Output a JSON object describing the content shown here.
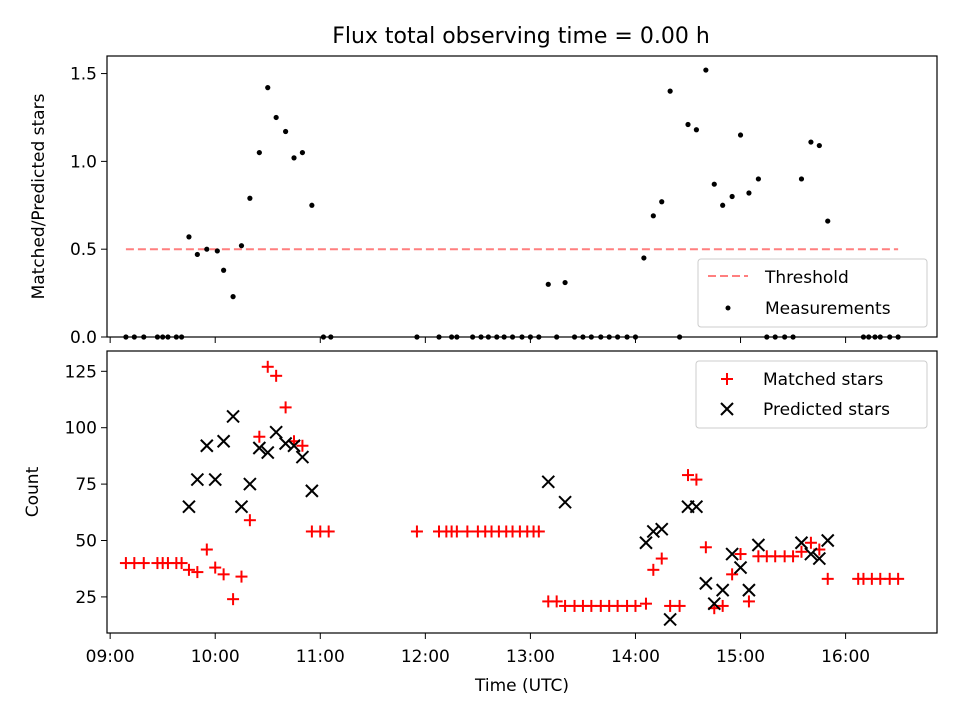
{
  "figure": {
    "title": "Flux total observing time = 0.00 h"
  },
  "chart_data": [
    {
      "type": "scatter",
      "panel": "top",
      "title": "Flux total observing time = 0.00 h",
      "xlabel": "",
      "ylabel": "Matched/Predicted stars",
      "x_units": "hours UTC",
      "xlim": [
        8.97,
        16.87
      ],
      "ylim": [
        0.0,
        1.6
      ],
      "yticks": [
        0.0,
        0.5,
        1.0,
        1.5
      ],
      "ytick_labels": [
        "0.0",
        "0.5",
        "1.0",
        "1.5"
      ],
      "legend_position": "lower-right",
      "threshold": {
        "name": "Threshold",
        "value": 0.5,
        "x_range": [
          9.15,
          16.5
        ],
        "color": "#ff7f7f",
        "style": "dashed"
      },
      "series": [
        {
          "name": "Measurements",
          "marker": "dot",
          "color": "#000000",
          "points": [
            [
              9.15,
              0.0
            ],
            [
              9.23,
              0.0
            ],
            [
              9.32,
              0.0
            ],
            [
              9.45,
              0.0
            ],
            [
              9.5,
              0.0
            ],
            [
              9.55,
              0.0
            ],
            [
              9.63,
              0.0
            ],
            [
              9.68,
              0.0
            ],
            [
              9.75,
              0.57
            ],
            [
              9.83,
              0.47
            ],
            [
              9.92,
              0.5
            ],
            [
              10.02,
              0.49
            ],
            [
              10.08,
              0.38
            ],
            [
              10.17,
              0.23
            ],
            [
              10.25,
              0.52
            ],
            [
              10.33,
              0.79
            ],
            [
              10.42,
              1.05
            ],
            [
              10.5,
              1.42
            ],
            [
              10.58,
              1.25
            ],
            [
              10.67,
              1.17
            ],
            [
              10.75,
              1.02
            ],
            [
              10.83,
              1.05
            ],
            [
              10.92,
              0.75
            ],
            [
              11.03,
              0.0
            ],
            [
              11.1,
              0.0
            ],
            [
              11.92,
              0.0
            ],
            [
              12.13,
              0.0
            ],
            [
              12.25,
              0.0
            ],
            [
              12.3,
              0.0
            ],
            [
              12.45,
              0.0
            ],
            [
              12.53,
              0.0
            ],
            [
              12.6,
              0.0
            ],
            [
              12.68,
              0.0
            ],
            [
              12.75,
              0.0
            ],
            [
              12.83,
              0.0
            ],
            [
              12.92,
              0.0
            ],
            [
              13.0,
              0.0
            ],
            [
              13.08,
              0.0
            ],
            [
              13.17,
              0.3
            ],
            [
              13.25,
              0.0
            ],
            [
              13.33,
              0.31
            ],
            [
              13.42,
              0.0
            ],
            [
              13.5,
              0.0
            ],
            [
              13.58,
              0.0
            ],
            [
              13.67,
              0.0
            ],
            [
              13.75,
              0.0
            ],
            [
              13.83,
              0.0
            ],
            [
              13.92,
              0.0
            ],
            [
              14.0,
              0.0
            ],
            [
              14.08,
              0.45
            ],
            [
              14.17,
              0.69
            ],
            [
              14.25,
              0.77
            ],
            [
              14.33,
              1.4
            ],
            [
              14.42,
              0.0
            ],
            [
              14.5,
              1.21
            ],
            [
              14.58,
              1.18
            ],
            [
              14.67,
              1.52
            ],
            [
              14.75,
              0.87
            ],
            [
              14.83,
              0.75
            ],
            [
              14.92,
              0.8
            ],
            [
              15.0,
              1.15
            ],
            [
              15.08,
              0.82
            ],
            [
              15.17,
              0.9
            ],
            [
              15.25,
              0.0
            ],
            [
              15.33,
              0.0
            ],
            [
              15.42,
              0.0
            ],
            [
              15.5,
              0.0
            ],
            [
              15.58,
              0.9
            ],
            [
              15.67,
              1.11
            ],
            [
              15.75,
              1.09
            ],
            [
              15.83,
              0.66
            ],
            [
              16.17,
              0.0
            ],
            [
              16.22,
              0.0
            ],
            [
              16.28,
              0.0
            ],
            [
              16.33,
              0.0
            ],
            [
              16.42,
              0.0
            ],
            [
              16.5,
              0.0
            ]
          ]
        }
      ]
    },
    {
      "type": "scatter",
      "panel": "bottom",
      "xlabel": "Time (UTC)",
      "ylabel": "Count",
      "x_units": "hours UTC",
      "xlim": [
        8.97,
        16.87
      ],
      "ylim": [
        9,
        134
      ],
      "xticks": [
        9,
        10,
        11,
        12,
        13,
        14,
        15,
        16
      ],
      "xtick_labels": [
        "09:00",
        "10:00",
        "11:00",
        "12:00",
        "13:00",
        "14:00",
        "15:00",
        "16:00"
      ],
      "yticks": [
        25,
        50,
        75,
        100,
        125
      ],
      "ytick_labels": [
        "25",
        "50",
        "75",
        "100",
        "125"
      ],
      "legend_position": "upper-right",
      "series": [
        {
          "name": "Matched stars",
          "marker": "plus",
          "color": "#ff0000",
          "points": [
            [
              9.15,
              40
            ],
            [
              9.23,
              40
            ],
            [
              9.32,
              40
            ],
            [
              9.45,
              40
            ],
            [
              9.5,
              40
            ],
            [
              9.55,
              40
            ],
            [
              9.63,
              40
            ],
            [
              9.68,
              40
            ],
            [
              9.75,
              37
            ],
            [
              9.83,
              36
            ],
            [
              9.92,
              46
            ],
            [
              10.0,
              38
            ],
            [
              10.08,
              35
            ],
            [
              10.17,
              24
            ],
            [
              10.25,
              34
            ],
            [
              10.33,
              59
            ],
            [
              10.42,
              96
            ],
            [
              10.5,
              127
            ],
            [
              10.58,
              123
            ],
            [
              10.67,
              109
            ],
            [
              10.75,
              94
            ],
            [
              10.83,
              92
            ],
            [
              10.92,
              54
            ],
            [
              11.0,
              54
            ],
            [
              11.08,
              54
            ],
            [
              11.92,
              54
            ],
            [
              12.13,
              54
            ],
            [
              12.2,
              54
            ],
            [
              12.25,
              54
            ],
            [
              12.3,
              54
            ],
            [
              12.4,
              54
            ],
            [
              12.5,
              54
            ],
            [
              12.57,
              54
            ],
            [
              12.63,
              54
            ],
            [
              12.7,
              54
            ],
            [
              12.77,
              54
            ],
            [
              12.83,
              54
            ],
            [
              12.9,
              54
            ],
            [
              12.97,
              54
            ],
            [
              13.03,
              54
            ],
            [
              13.08,
              54
            ],
            [
              13.17,
              23
            ],
            [
              13.25,
              23
            ],
            [
              13.33,
              21
            ],
            [
              13.42,
              21
            ],
            [
              13.5,
              21
            ],
            [
              13.58,
              21
            ],
            [
              13.67,
              21
            ],
            [
              13.75,
              21
            ],
            [
              13.83,
              21
            ],
            [
              13.92,
              21
            ],
            [
              14.0,
              21
            ],
            [
              14.1,
              22
            ],
            [
              14.17,
              37
            ],
            [
              14.25,
              42
            ],
            [
              14.33,
              21
            ],
            [
              14.42,
              21
            ],
            [
              14.5,
              79
            ],
            [
              14.58,
              77
            ],
            [
              14.67,
              47
            ],
            [
              14.75,
              20
            ],
            [
              14.83,
              21
            ],
            [
              14.92,
              35
            ],
            [
              15.0,
              44
            ],
            [
              15.08,
              23
            ],
            [
              15.17,
              43
            ],
            [
              15.25,
              43
            ],
            [
              15.33,
              43
            ],
            [
              15.42,
              43
            ],
            [
              15.5,
              43
            ],
            [
              15.58,
              45
            ],
            [
              15.67,
              49
            ],
            [
              15.75,
              46
            ],
            [
              15.83,
              33
            ],
            [
              16.12,
              33
            ],
            [
              16.17,
              33
            ],
            [
              16.25,
              33
            ],
            [
              16.33,
              33
            ],
            [
              16.42,
              33
            ],
            [
              16.5,
              33
            ]
          ]
        },
        {
          "name": "Predicted stars",
          "marker": "x",
          "color": "#000000",
          "points": [
            [
              9.75,
              65
            ],
            [
              9.83,
              77
            ],
            [
              9.92,
              92
            ],
            [
              10.0,
              77
            ],
            [
              10.08,
              94
            ],
            [
              10.17,
              105
            ],
            [
              10.25,
              65
            ],
            [
              10.33,
              75
            ],
            [
              10.42,
              91
            ],
            [
              10.5,
              89
            ],
            [
              10.58,
              98
            ],
            [
              10.67,
              93
            ],
            [
              10.75,
              92
            ],
            [
              10.83,
              87
            ],
            [
              10.92,
              72
            ],
            [
              13.17,
              76
            ],
            [
              13.33,
              67
            ],
            [
              14.1,
              49
            ],
            [
              14.17,
              54
            ],
            [
              14.25,
              55
            ],
            [
              14.33,
              15
            ],
            [
              14.5,
              65
            ],
            [
              14.58,
              65
            ],
            [
              14.67,
              31
            ],
            [
              14.75,
              22
            ],
            [
              14.83,
              28
            ],
            [
              14.92,
              44
            ],
            [
              15.0,
              38
            ],
            [
              15.08,
              28
            ],
            [
              15.17,
              48
            ],
            [
              15.58,
              49
            ],
            [
              15.67,
              44
            ],
            [
              15.75,
              42
            ],
            [
              15.83,
              50
            ]
          ]
        }
      ]
    }
  ]
}
